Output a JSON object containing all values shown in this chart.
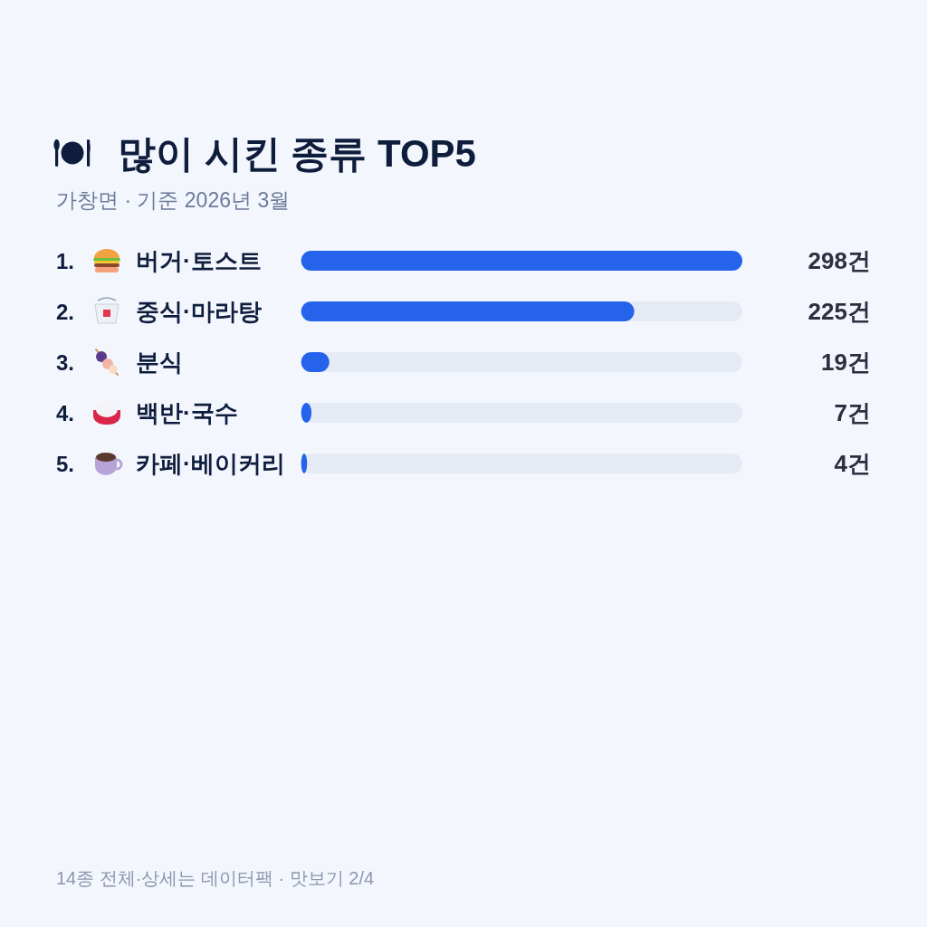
{
  "chart_data": {
    "type": "bar",
    "orientation": "horizontal",
    "title": "많이 시킨 종류 TOP5",
    "subtitle": "가창면 · 기준 2026년 3월",
    "categories": [
      "1. 버거·토스트",
      "2. 중식·마라탕",
      "3. 분식",
      "4. 백반·국수",
      "5. 카페·베이커리"
    ],
    "values": [
      298,
      225,
      19,
      7,
      4
    ],
    "value_labels": [
      "298건",
      "225건",
      "19건",
      "7건",
      "4건"
    ],
    "color": "#2563eb",
    "xlim": [
      0,
      298
    ],
    "annotations": [
      "14종 전체·상세는 데이터팩 · 맛보기 2/4"
    ]
  }
}
